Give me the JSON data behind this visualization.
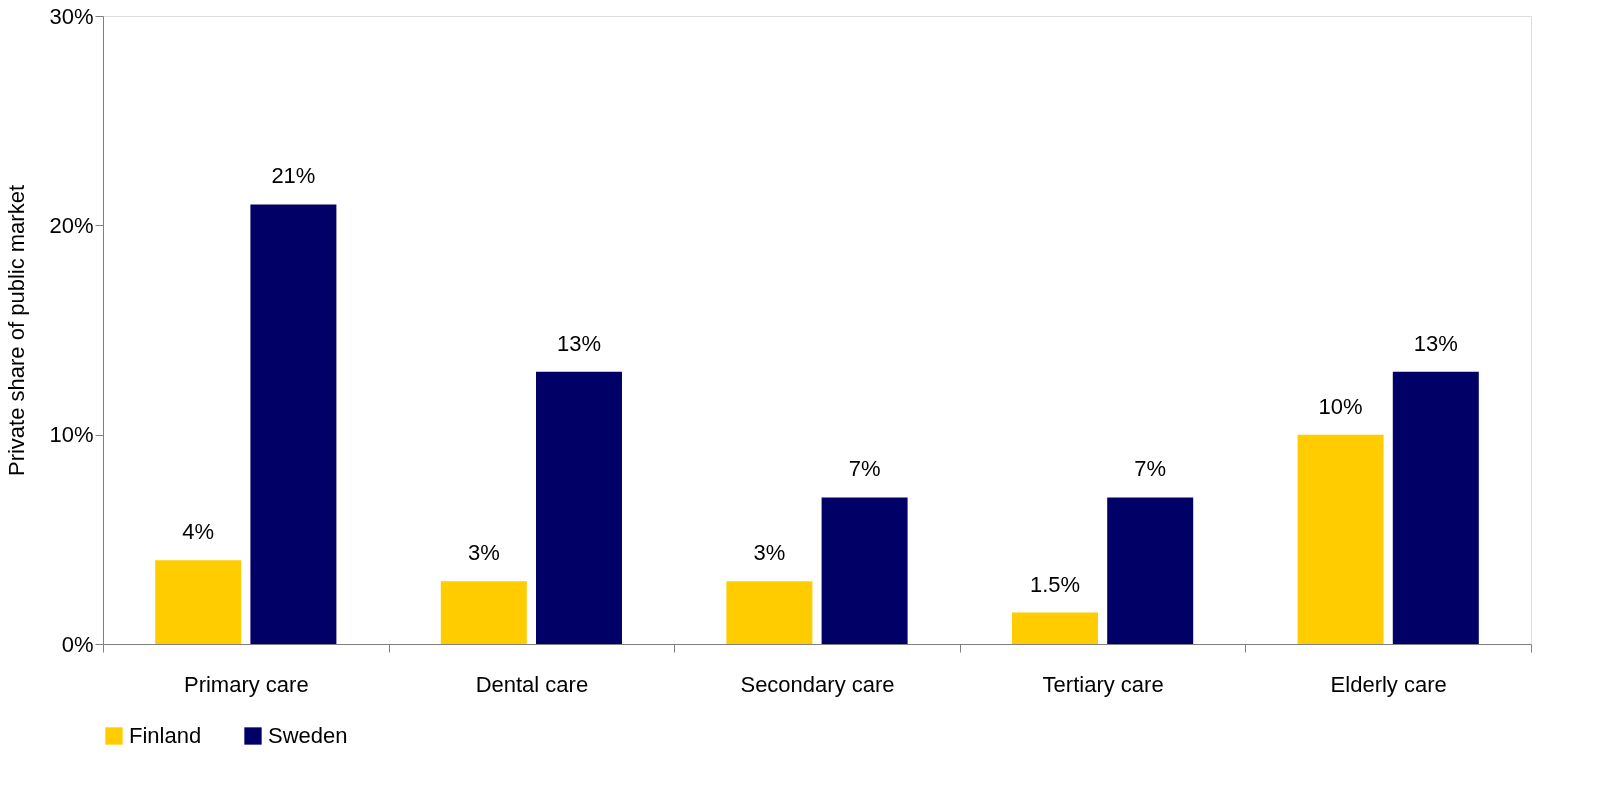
{
  "chart_data": {
    "type": "bar",
    "ylabel": "Private share of public market",
    "categories": [
      "Primary care",
      "Dental care",
      "Secondary care",
      "Tertiary care",
      "Elderly care"
    ],
    "series": [
      {
        "name": "Finland",
        "color": "#ffcc00",
        "values": [
          4,
          3,
          3,
          1.5,
          10
        ],
        "value_labels": [
          "4%",
          "3%",
          "3%",
          "1.5%",
          "10%"
        ]
      },
      {
        "name": "Sweden",
        "color": "#000066",
        "values": [
          21,
          13,
          7,
          7,
          13
        ],
        "value_labels": [
          "21%",
          "13%",
          "7%",
          "7%",
          "13%"
        ]
      }
    ],
    "ylim": [
      0,
      30
    ],
    "yticks": [
      {
        "value": 0,
        "label": "0%"
      },
      {
        "value": 10,
        "label": "10%"
      },
      {
        "value": 20,
        "label": "20%"
      },
      {
        "value": 30,
        "label": "30%"
      }
    ],
    "grid": false,
    "legend": "bottom"
  }
}
